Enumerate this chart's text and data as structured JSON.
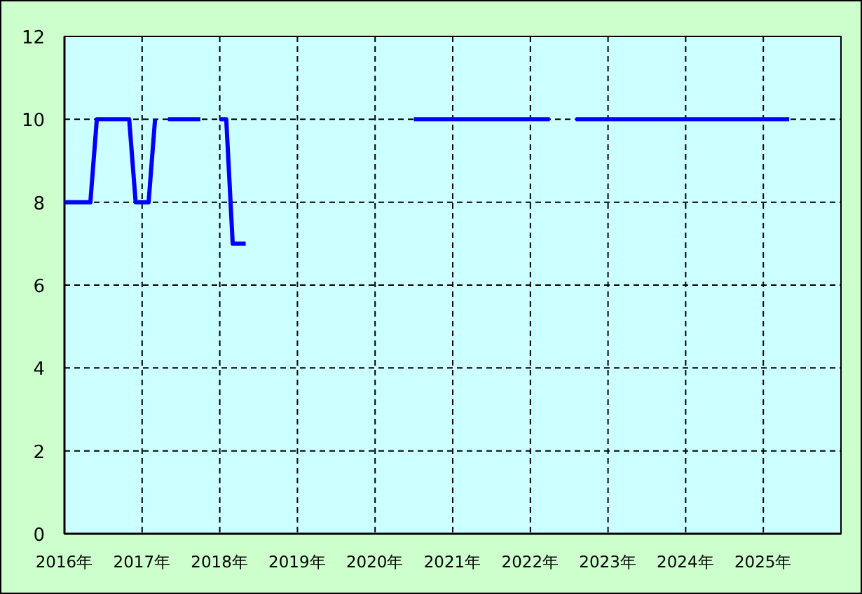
{
  "chart_data": {
    "type": "line",
    "series": [
      {
        "color": "#0000ff",
        "x": [
          "2016-01",
          "2016-05",
          "2016-06",
          "2016-11",
          "2016-12",
          "2017-02",
          "2017-03"
        ],
        "values": [
          8,
          8,
          10,
          10,
          8,
          8,
          10
        ]
      },
      {
        "color": "#0000ff",
        "x": [
          "2017-05",
          "2017-10"
        ],
        "values": [
          10,
          10
        ]
      },
      {
        "color": "#0000ff",
        "x": [
          "2018-01",
          "2018-02",
          "2018-03",
          "2018-05"
        ],
        "values": [
          10,
          10,
          7,
          7
        ]
      },
      {
        "color": "#0000ff",
        "x": [
          "2020-07",
          "2022-04"
        ],
        "values": [
          10,
          10
        ]
      },
      {
        "color": "#0000ff",
        "x": [
          "2022-08",
          "2025-05"
        ],
        "values": [
          10,
          10
        ]
      }
    ],
    "xlim": [
      "2016",
      "2026"
    ],
    "xticks": [
      {
        "value": "2016",
        "label": "2016年"
      },
      {
        "value": "2017",
        "label": "2017年"
      },
      {
        "value": "2018",
        "label": "2018年"
      },
      {
        "value": "2019",
        "label": "2019年"
      },
      {
        "value": "2020",
        "label": "2020年"
      },
      {
        "value": "2021",
        "label": "2021年"
      },
      {
        "value": "2022",
        "label": "2022年"
      },
      {
        "value": "2023",
        "label": "2023年"
      },
      {
        "value": "2024",
        "label": "2024年"
      },
      {
        "value": "2025",
        "label": "2025年"
      }
    ],
    "ylim": [
      0,
      12
    ],
    "yticks": [
      0,
      2,
      4,
      6,
      8,
      10,
      12
    ],
    "grid": true,
    "marker": "none",
    "line_style": "solid"
  }
}
